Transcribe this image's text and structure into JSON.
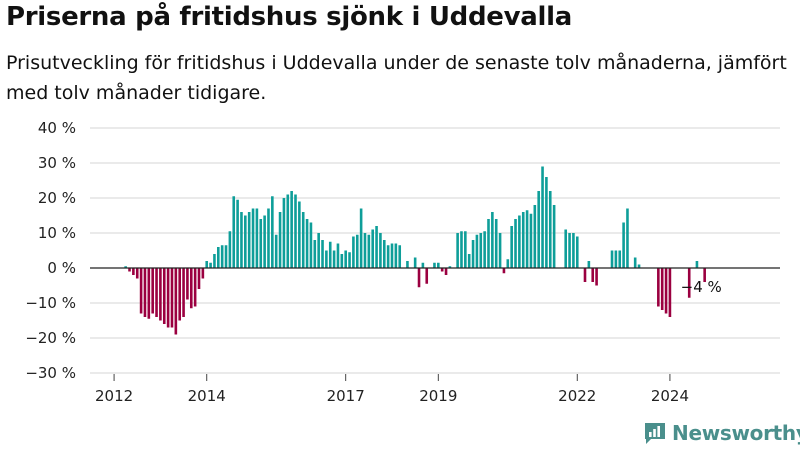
{
  "header": {
    "title": "Priserna på fritidshus sjönk i Uddevalla",
    "subtitle": "Prisutveckling för fritidshus i Uddevalla under de senaste tolv månaderna, jämfört med tolv månader tidigare."
  },
  "brand": {
    "name": "Newsworthy",
    "icon": "newsworthy-logo-icon"
  },
  "colors": {
    "positive": "#0e9e99",
    "negative": "#9b0040",
    "grid": "#d6d6d6",
    "zero_line": "#222222"
  },
  "chart_data": {
    "type": "bar",
    "title": "Priserna på fritidshus sjönk i Uddevalla",
    "subtitle": "Prisutveckling för fritidshus i Uddevalla under de senaste tolv månaderna, jämfört med tolv månader tidigare.",
    "xlabel": "",
    "ylabel": "",
    "ylim": [
      -30,
      40
    ],
    "yticks": [
      40,
      30,
      20,
      10,
      0,
      -10,
      -20,
      -30
    ],
    "ytick_labels": [
      "40 %",
      "30 %",
      "20 %",
      "10 %",
      "0 %",
      "−10 %",
      "−20 %",
      "−30 %"
    ],
    "xticks": [
      "2012",
      "2014",
      "2017",
      "2019",
      "2022",
      "2024"
    ],
    "x_start": "2011-10",
    "x_step": "month",
    "grid": true,
    "values": [
      null,
      null,
      null,
      null,
      null,
      null,
      0.5,
      -1,
      -2,
      -3,
      -13,
      -14,
      -14.5,
      -13,
      -14,
      -15,
      -16,
      -17,
      -17,
      -19,
      -15,
      -14,
      -9,
      -11.5,
      -11,
      -6,
      -3,
      2,
      1.5,
      4,
      6,
      6.5,
      6.5,
      10.5,
      20.5,
      19.5,
      16,
      15,
      16,
      17,
      17,
      14,
      15,
      17,
      20.5,
      9.5,
      16,
      20,
      21,
      22,
      21,
      19,
      16,
      14,
      13,
      8,
      10,
      8,
      5,
      7.5,
      5,
      7,
      4,
      5,
      4.5,
      9,
      9.5,
      17,
      10,
      9.5,
      11,
      12,
      10,
      8,
      6.5,
      7,
      7,
      6.5,
      null,
      2,
      0,
      3,
      -5.5,
      1.5,
      -4.5,
      null,
      1.5,
      1.5,
      -1,
      -2,
      0.5,
      null,
      10,
      10.5,
      10.5,
      4,
      8,
      9.5,
      10,
      10.5,
      14,
      16,
      14,
      10,
      -1.5,
      2.5,
      12,
      14,
      15,
      16,
      16.5,
      15.5,
      18,
      22,
      29,
      26,
      22,
      18,
      null,
      null,
      11,
      10,
      10,
      9,
      0,
      -4,
      2,
      -4,
      -5,
      null,
      null,
      null,
      5,
      5,
      5,
      13,
      17,
      null,
      3,
      1,
      null,
      null,
      null,
      null,
      -11,
      -12,
      -13,
      -14,
      null,
      null,
      null,
      null,
      -8.5,
      null,
      2,
      null,
      -4
    ],
    "annotations": [
      {
        "label": "−4 %",
        "target": "last"
      }
    ]
  }
}
